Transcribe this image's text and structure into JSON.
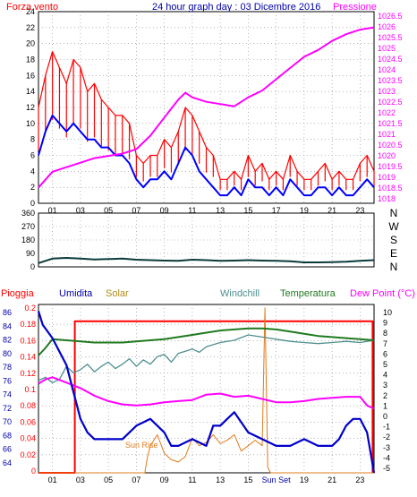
{
  "header": {
    "wind_label": "Forza vento",
    "title": "24 hour graph day : 03 Dicembre 2016",
    "pressure_label": "Pressione"
  },
  "lower_header": {
    "rain": "Pioggia",
    "humidity": "Umidita",
    "solar": "Solar",
    "windchill": "Windchill",
    "temperature": "Temperatura",
    "dewpoint": "Dew Point (°C)"
  },
  "annotations": {
    "sunrise": "Sun Rise",
    "sunset": "Sun Set"
  },
  "colors": {
    "wind": "#ff0000",
    "wind_avg": "#0000ff",
    "pressure": "#ff00ff",
    "direction": "#0b3a3a",
    "rain": "#ff0000",
    "humidity": "#0000cc",
    "solar": "#e07b1a",
    "windchill": "#4f8f8f",
    "temperature": "#1f7a1f",
    "dewpoint": "#ff00ff",
    "axis": "#0000aa",
    "grid": "#888888"
  },
  "chart_data": [
    {
      "type": "line",
      "x_ticks": [
        "01",
        "03",
        "05",
        "07",
        "09",
        "11",
        "13",
        "15",
        "17",
        "19",
        "21",
        "23"
      ],
      "xlim": [
        0,
        24
      ],
      "ylim": [
        0,
        24
      ],
      "ylim_right": [
        1018,
        1026.5
      ],
      "left_ticks": [
        "24",
        "22",
        "20",
        "18",
        "16",
        "14",
        "12",
        "10",
        "8",
        "6",
        "4",
        "2",
        "0"
      ],
      "right_ticks": [
        "1026.5",
        "1026",
        "1025.5",
        "1025",
        "1024.5",
        "1024",
        "1023.5",
        "1023",
        "1022.5",
        "1022",
        "1021.5",
        "1021",
        "1020.5",
        "1020",
        "1019.5",
        "1019",
        "1018.5",
        "1018"
      ],
      "series": [
        {
          "key": "gust",
          "x": [
            0,
            0.5,
            1,
            1.5,
            2,
            2.5,
            3,
            3.5,
            4,
            4.5,
            5,
            5.5,
            6,
            6.5,
            7,
            7.5,
            8,
            8.5,
            9,
            9.5,
            10,
            10.5,
            11,
            11.5,
            12,
            12.5,
            13,
            13.5,
            14,
            14.5,
            15,
            15.5,
            16,
            16.5,
            17,
            17.5,
            18,
            18.5,
            19,
            19.5,
            20,
            20.5,
            21,
            21.5,
            22,
            22.5,
            23,
            23.5,
            24
          ],
          "y": [
            12,
            16,
            19,
            17,
            15,
            18,
            17,
            14,
            15,
            13,
            12,
            11,
            11,
            10,
            6,
            5,
            6,
            6,
            8,
            7,
            9,
            12,
            11,
            9,
            7,
            6,
            3,
            3,
            4,
            3,
            6,
            4,
            5,
            3,
            4,
            3,
            6,
            4,
            3,
            3,
            4,
            5,
            3,
            4,
            3,
            3,
            5,
            6,
            4
          ]
        },
        {
          "key": "avg",
          "x": [
            0,
            0.5,
            1,
            1.5,
            2,
            2.5,
            3,
            3.5,
            4,
            4.5,
            5,
            5.5,
            6,
            6.5,
            7,
            7.5,
            8,
            8.5,
            9,
            9.5,
            10,
            10.5,
            11,
            11.5,
            12,
            12.5,
            13,
            13.5,
            14,
            14.5,
            15,
            15.5,
            16,
            16.5,
            17,
            17.5,
            18,
            18.5,
            19,
            19.5,
            20,
            20.5,
            21,
            21.5,
            22,
            22.5,
            23,
            23.5,
            24
          ],
          "y": [
            6,
            9,
            11,
            10,
            9,
            10,
            9,
            8,
            8,
            7,
            7,
            6,
            6,
            5,
            3,
            2,
            3,
            3,
            4,
            3,
            5,
            7,
            6,
            4,
            3,
            2,
            1,
            1,
            2,
            1,
            3,
            2,
            2,
            1,
            2,
            1,
            3,
            2,
            1,
            1,
            2,
            2,
            1,
            2,
            1,
            1,
            2,
            3,
            2
          ]
        },
        {
          "key": "pressure",
          "x": [
            0,
            1,
            2,
            3,
            4,
            5,
            6,
            7,
            8,
            9,
            10,
            10.5,
            11,
            12,
            13,
            14,
            15,
            16,
            17,
            18,
            19,
            20,
            21,
            22,
            23,
            24
          ],
          "y": [
            1018.7,
            1019.4,
            1019.6,
            1019.8,
            1020.0,
            1020.1,
            1020.2,
            1020.4,
            1021.0,
            1021.8,
            1022.6,
            1022.9,
            1022.7,
            1022.5,
            1022.4,
            1022.3,
            1022.7,
            1023.0,
            1023.5,
            1024.0,
            1024.5,
            1024.8,
            1025.2,
            1025.5,
            1025.7,
            1025.8
          ]
        }
      ]
    },
    {
      "type": "line",
      "x_ticks": [
        "01",
        "03",
        "05",
        "07",
        "09",
        "11",
        "13",
        "15",
        "17",
        "19",
        "21",
        "23"
      ],
      "xlim": [
        0,
        24
      ],
      "ylim": [
        0,
        360
      ],
      "left_ticks": [
        "360",
        "270",
        "180",
        "90",
        "0"
      ],
      "right_ticks": [
        "N",
        "W",
        "S",
        "E",
        "N"
      ],
      "series": [
        {
          "key": "direction",
          "x": [
            0,
            0.5,
            1,
            2,
            3,
            4,
            5,
            6,
            7,
            8,
            9,
            10,
            11,
            12,
            13,
            14,
            15,
            16,
            17,
            18,
            19,
            20,
            21,
            22,
            23,
            24
          ],
          "y": [
            25,
            40,
            55,
            60,
            55,
            50,
            52,
            55,
            48,
            45,
            42,
            40,
            48,
            45,
            40,
            42,
            45,
            42,
            40,
            38,
            30,
            30,
            32,
            35,
            40,
            45
          ]
        }
      ]
    },
    {
      "type": "line",
      "x_ticks": [
        "01",
        "03",
        "05",
        "07",
        "09",
        "11",
        "13",
        "15",
        "Sun Set",
        "19",
        "21",
        "23"
      ],
      "xlim": [
        0,
        24
      ],
      "ylim": [
        0,
        0.2
      ],
      "left_ticks_rain": [
        "0.2",
        "0.18",
        "0.16",
        "0.14",
        "0.12",
        "0.1",
        "0.08",
        "0.06",
        "0.04",
        "0.02",
        "0"
      ],
      "left_ticks_humidity": [
        "86",
        "84",
        "82",
        "80",
        "78",
        "76",
        "74",
        "72",
        "70",
        "68",
        "66",
        "64"
      ],
      "right_ticks": [
        "10",
        "9",
        "8",
        "7",
        "6",
        "5",
        "4",
        "3",
        "2",
        "1",
        "0",
        "-1",
        "-2",
        "-3",
        "-4",
        "-5"
      ],
      "series": [
        {
          "key": "rain",
          "x": [
            0,
            2.6,
            2.6,
            23.9,
            23.9
          ],
          "y": [
            0,
            0,
            0.18,
            0.18,
            0
          ]
        },
        {
          "key": "humidity",
          "x": [
            0,
            0.3,
            1,
            1.5,
            2,
            2.5,
            3,
            3.5,
            4,
            5,
            6,
            7,
            8,
            9,
            9.5,
            10,
            11,
            12,
            12.5,
            13,
            13.5,
            14,
            15,
            16,
            17,
            18,
            19,
            20,
            21,
            21.5,
            22,
            22.5,
            23,
            23.5,
            24
          ],
          "y": [
            86,
            84,
            82,
            80,
            78,
            74,
            70,
            68,
            67,
            67,
            67,
            69,
            70,
            68,
            66,
            66,
            67,
            66,
            69,
            69,
            70,
            71,
            68,
            67,
            66,
            66,
            67,
            66,
            66,
            67,
            69,
            70,
            70,
            68,
            62
          ]
        },
        {
          "key": "temperature",
          "x": [
            0,
            0.5,
            1,
            2,
            3,
            4,
            5,
            6,
            7,
            8,
            9,
            10,
            11,
            12,
            13,
            14,
            15,
            16,
            17,
            18,
            19,
            20,
            21,
            22,
            23,
            24
          ],
          "y": [
            5.8,
            6.5,
            7.3,
            7.2,
            7.1,
            7.0,
            7.0,
            7.0,
            7.1,
            7.2,
            7.3,
            7.5,
            7.7,
            7.9,
            8.1,
            8.2,
            8.3,
            8.3,
            8.2,
            8.0,
            7.8,
            7.6,
            7.5,
            7.4,
            7.3,
            7.2
          ]
        },
        {
          "key": "windchill",
          "x": [
            0,
            0.5,
            1,
            1.5,
            2,
            2.5,
            3,
            3.5,
            4,
            4.5,
            5,
            5.5,
            6,
            6.5,
            7,
            7.5,
            8,
            8.5,
            9,
            9.5,
            10,
            10.5,
            11,
            11.5,
            12,
            13,
            14,
            15,
            16,
            17,
            18,
            19,
            20,
            21,
            22,
            23,
            24
          ],
          "y": [
            3.5,
            3.8,
            3.3,
            3.6,
            4.8,
            4.2,
            4.5,
            5.0,
            4.3,
            4.8,
            5.2,
            4.6,
            5.0,
            5.5,
            4.8,
            5.4,
            5.0,
            5.7,
            5.9,
            5.2,
            6.0,
            6.2,
            6.4,
            6.1,
            6.6,
            7.0,
            7.2,
            7.7,
            7.5,
            7.3,
            7.1,
            7.0,
            6.9,
            7.0,
            7.1,
            7.0,
            7.2
          ]
        },
        {
          "key": "dewpoint",
          "x": [
            0,
            0.5,
            1,
            2,
            3,
            4,
            5,
            6,
            7,
            8,
            9,
            10,
            11,
            12,
            13,
            14,
            15,
            16,
            17,
            18,
            19,
            20,
            21,
            22,
            23,
            23.5,
            24
          ],
          "y": [
            3.2,
            3.6,
            3.8,
            3.3,
            2.8,
            2.1,
            1.6,
            1.3,
            1.2,
            1.3,
            1.5,
            1.6,
            1.7,
            2.2,
            2.3,
            2.0,
            2.1,
            1.8,
            1.5,
            1.5,
            1.6,
            1.8,
            1.9,
            2.0,
            2.0,
            1.2,
            0.9
          ]
        },
        {
          "key": "solar",
          "x": [
            0,
            7.6,
            7.8,
            8,
            8.5,
            9,
            9.5,
            10,
            10.5,
            11,
            11.5,
            12,
            12.5,
            13,
            13.5,
            14,
            14.5,
            15,
            15.5,
            16,
            16.2,
            16.4,
            16.6,
            17,
            24
          ],
          "y": [
            -5,
            -5,
            -3.5,
            -2.5,
            -1.5,
            -3.2,
            -3.8,
            -4.0,
            -3.5,
            -1.8,
            -2.5,
            -2.2,
            -1.5,
            -2.3,
            -2.0,
            -1.5,
            -3.0,
            -2.5,
            -2.0,
            -2.5,
            10.2,
            -4.5,
            -5,
            -5,
            -5
          ]
        }
      ]
    }
  ]
}
